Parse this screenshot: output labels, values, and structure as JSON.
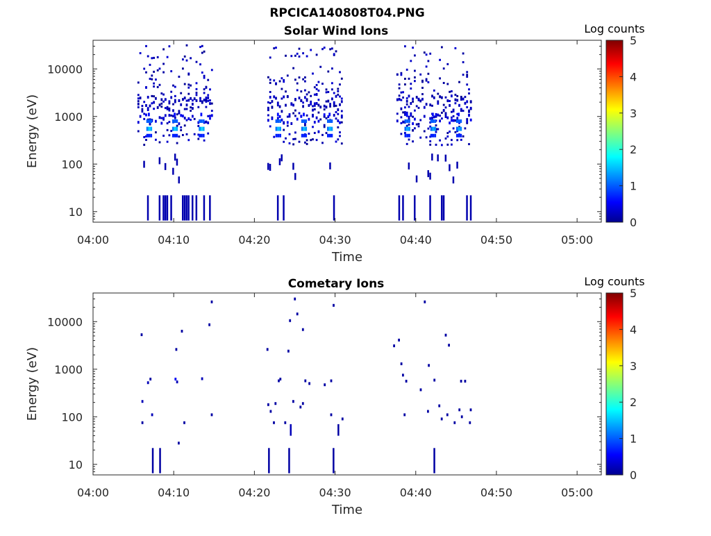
{
  "figure_title": "RPCICA140808T04.PNG",
  "colors": {
    "axis": "#262626",
    "frame": "#262626",
    "colormap": "jet",
    "low": "#00008f",
    "high": "#800000"
  },
  "chart_data": [
    {
      "type": "heatmap",
      "title": "Solar Wind Ions",
      "xlabel": "Time",
      "ylabel": "Energy (eV)",
      "x_range": [
        "04:00",
        "05:03"
      ],
      "x_ticks": [
        "04:00",
        "04:10",
        "04:20",
        "04:30",
        "04:40",
        "04:50",
        "05:00"
      ],
      "y_scale": "log",
      "y_range": [
        6,
        40000
      ],
      "y_ticks": [
        "10",
        "100",
        "1000",
        "10000"
      ],
      "colorbar": {
        "label": "Log counts",
        "range": [
          0,
          5
        ],
        "ticks": [
          "0",
          "1",
          "2",
          "3",
          "4",
          "5"
        ]
      },
      "bursts": [
        {
          "start_min": 5.5,
          "end_min": 14.8,
          "peaks_min": [
            6.9,
            10.1,
            13.4
          ],
          "peak_energy_eV": 550,
          "peak_log_counts": 1.7
        },
        {
          "start_min": 21.6,
          "end_min": 30.8,
          "peaks_min": [
            22.9,
            26.1,
            29.3
          ],
          "peak_energy_eV": 550,
          "peak_log_counts": 1.6
        },
        {
          "start_min": 37.6,
          "end_min": 46.8,
          "peaks_min": [
            38.9,
            42.1,
            45.3
          ],
          "peak_energy_eV": 550,
          "peak_log_counts": 1.5
        }
      ]
    },
    {
      "type": "heatmap",
      "title": "Cometary Ions",
      "xlabel": "Time",
      "ylabel": "Energy (eV)",
      "x_range": [
        "04:00",
        "05:03"
      ],
      "x_ticks": [
        "04:00",
        "04:10",
        "04:20",
        "04:30",
        "04:40",
        "04:50",
        "05:00"
      ],
      "y_scale": "log",
      "y_range": [
        6,
        40000
      ],
      "y_ticks": [
        "10",
        "100",
        "1000",
        "10000"
      ],
      "colorbar": {
        "label": "Log counts",
        "range": [
          0,
          5
        ],
        "ticks": [
          "0",
          "1",
          "2",
          "3",
          "4",
          "5"
        ]
      },
      "points": [
        [
          5.9,
          5300,
          0.1
        ],
        [
          6.0,
          210,
          0.2
        ],
        [
          6.0,
          75,
          0.1
        ],
        [
          6.7,
          520,
          0.2
        ],
        [
          7.0,
          620,
          0.1
        ],
        [
          7.2,
          110,
          0.2
        ],
        [
          7.3,
          14,
          0.1
        ],
        [
          8.2,
          14,
          0.1
        ],
        [
          10.1,
          620,
          0.5
        ],
        [
          10.2,
          2600,
          0.1
        ],
        [
          10.3,
          540,
          0.2
        ],
        [
          10.5,
          28,
          0.1
        ],
        [
          10.9,
          6300,
          0.1
        ],
        [
          11.2,
          75,
          0.1
        ],
        [
          13.4,
          630,
          0.2
        ],
        [
          14.3,
          8600,
          0.1
        ],
        [
          14.6,
          26000,
          0.1
        ],
        [
          14.6,
          110,
          0.1
        ],
        [
          21.5,
          2600,
          0.1
        ],
        [
          21.6,
          180,
          0.1
        ],
        [
          21.7,
          14,
          0.1
        ],
        [
          21.9,
          130,
          0.1
        ],
        [
          22.3,
          75,
          0.1
        ],
        [
          22.5,
          190,
          0.1
        ],
        [
          22.9,
          570,
          0.1
        ],
        [
          23.1,
          620,
          0.1
        ],
        [
          23.7,
          75,
          0.1
        ],
        [
          24.1,
          2400,
          0.1
        ],
        [
          24.2,
          14,
          0.1
        ],
        [
          24.3,
          10500,
          0.1
        ],
        [
          24.4,
          55,
          0.2
        ],
        [
          24.7,
          210,
          0.1
        ],
        [
          24.9,
          30000,
          0.1
        ],
        [
          25.2,
          14500,
          0.1
        ],
        [
          25.6,
          160,
          0.1
        ],
        [
          25.9,
          6800,
          0.1
        ],
        [
          25.9,
          190,
          0.1
        ],
        [
          26.2,
          570,
          0.1
        ],
        [
          26.7,
          500,
          0.1
        ],
        [
          28.6,
          470,
          0.1
        ],
        [
          29.4,
          570,
          0.1
        ],
        [
          29.4,
          110,
          0.1
        ],
        [
          29.7,
          22000,
          0.1
        ],
        [
          29.7,
          14,
          0.1
        ],
        [
          30.3,
          50,
          0.1
        ],
        [
          30.8,
          90,
          0.1
        ],
        [
          37.2,
          3100,
          0.1
        ],
        [
          37.8,
          4100,
          0.1
        ],
        [
          38.1,
          1300,
          0.1
        ],
        [
          38.3,
          750,
          0.1
        ],
        [
          38.5,
          110,
          0.1
        ],
        [
          38.7,
          560,
          0.1
        ],
        [
          41.0,
          26000,
          0.1
        ],
        [
          40.5,
          370,
          0.1
        ],
        [
          41.5,
          1200,
          0.1
        ],
        [
          42.2,
          14,
          0.1
        ],
        [
          42.2,
          590,
          0.1
        ],
        [
          41.4,
          130,
          0.1
        ],
        [
          42.8,
          170,
          0.1
        ],
        [
          43.1,
          90,
          0.1
        ],
        [
          43.6,
          5200,
          0.1
        ],
        [
          44.0,
          3200,
          0.1
        ],
        [
          43.8,
          110,
          0.1
        ],
        [
          44.7,
          75,
          0.1
        ],
        [
          45.3,
          140,
          0.1
        ],
        [
          45.5,
          560,
          0.1
        ],
        [
          45.6,
          100,
          0.1
        ],
        [
          46.0,
          560,
          0.1
        ],
        [
          46.6,
          75,
          0.1
        ],
        [
          46.7,
          140,
          0.1
        ]
      ]
    }
  ]
}
